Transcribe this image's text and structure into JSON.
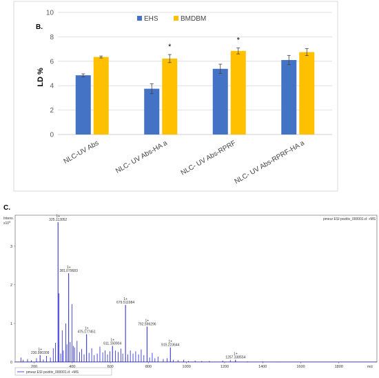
{
  "chart_data": [
    {
      "panel_label": "B.",
      "type": "bar",
      "ylabel": "LD %",
      "ylim": [
        0,
        10
      ],
      "yticks": [
        0,
        2,
        4,
        6,
        8,
        10
      ],
      "grid": true,
      "legend_position": "top",
      "categories": [
        "NLC-UV Abs",
        "NLC- UV Abs-HA a",
        "NLC- UV Abs-RPRF",
        "NLC- UV Abs-RPRF-HA a"
      ],
      "series": [
        {
          "name": "EHS",
          "color": "#4472C4",
          "values": [
            4.85,
            3.75,
            5.38,
            6.1
          ],
          "errors": [
            0.12,
            0.4,
            0.38,
            0.38
          ]
        },
        {
          "name": "BMDBM",
          "color": "#FFC000",
          "values": [
            6.35,
            6.22,
            6.85,
            6.75
          ],
          "errors": [
            0.08,
            0.33,
            0.25,
            0.28
          ]
        }
      ],
      "annotations": [
        {
          "category_index": 1,
          "series_index": 1,
          "text": "*"
        },
        {
          "category_index": 2,
          "series_index": 1,
          "text": "*"
        }
      ]
    },
    {
      "panel_label": "C.",
      "type": "line",
      "xlabel": "m/z",
      "ylabel": "Intens.",
      "y_exponent": "x10^5",
      "y_multiplier_text": "x10",
      "y_multiplier_exp": "5",
      "xlim": [
        100,
        2000
      ],
      "xticks": [
        200,
        400,
        600,
        800,
        1000,
        1200,
        1400,
        1600,
        1800
      ],
      "ylim": [
        0,
        3.8
      ],
      "yticks": [
        0,
        1,
        2,
        3
      ],
      "header_text": "pmeur ESI pozitiv_000001.d: +MS",
      "legend_text": "pmeur ESI pozitiv_000001.d: +MS",
      "peak_charge": "1+",
      "labeled_peaks": [
        {
          "mz": 325.113052,
          "label": "325.113052",
          "intensity": 3.62
        },
        {
          "mz": 381.079683,
          "label": "381.079683",
          "intensity": 2.3
        },
        {
          "mz": 679.511984,
          "label": "679.511984",
          "intensity": 1.48
        },
        {
          "mz": 792.596296,
          "label": "792.596296",
          "intensity": 0.92
        },
        {
          "mz": 475.177451,
          "label": "475.177451",
          "intensity": 0.72
        },
        {
          "mz": 611.160904,
          "label": "611.160904",
          "intensity": 0.42
        },
        {
          "mz": 915.223644,
          "label": "915.223644",
          "intensity": 0.38
        },
        {
          "mz": 230.990309,
          "label": "230.990309",
          "intensity": 0.18
        },
        {
          "mz": 1257.338554,
          "label": "1257.338554",
          "intensity": 0.06
        }
      ],
      "other_peaks": [
        {
          "mz": 130,
          "intensity": 0.12
        },
        {
          "mz": 142,
          "intensity": 0.06
        },
        {
          "mz": 165,
          "intensity": 0.08
        },
        {
          "mz": 185,
          "intensity": 0.05
        },
        {
          "mz": 212,
          "intensity": 0.1
        },
        {
          "mz": 248,
          "intensity": 0.07
        },
        {
          "mz": 265,
          "intensity": 0.16
        },
        {
          "mz": 285,
          "intensity": 0.12
        },
        {
          "mz": 300,
          "intensity": 0.36
        },
        {
          "mz": 312,
          "intensity": 0.5
        },
        {
          "mz": 330,
          "intensity": 1.78
        },
        {
          "mz": 339,
          "intensity": 0.22
        },
        {
          "mz": 347,
          "intensity": 0.82
        },
        {
          "mz": 353,
          "intensity": 0.3
        },
        {
          "mz": 366,
          "intensity": 1.0
        },
        {
          "mz": 372,
          "intensity": 0.46
        },
        {
          "mz": 389,
          "intensity": 0.52
        },
        {
          "mz": 398,
          "intensity": 1.5
        },
        {
          "mz": 405,
          "intensity": 0.42
        },
        {
          "mz": 412,
          "intensity": 0.38
        },
        {
          "mz": 425,
          "intensity": 0.55
        },
        {
          "mz": 438,
          "intensity": 0.26
        },
        {
          "mz": 449,
          "intensity": 0.34
        },
        {
          "mz": 462,
          "intensity": 0.2
        },
        {
          "mz": 488,
          "intensity": 0.24
        },
        {
          "mz": 502,
          "intensity": 0.36
        },
        {
          "mz": 515,
          "intensity": 0.18
        },
        {
          "mz": 531,
          "intensity": 0.22
        },
        {
          "mz": 545,
          "intensity": 0.4
        },
        {
          "mz": 560,
          "intensity": 0.25
        },
        {
          "mz": 572,
          "intensity": 0.3
        },
        {
          "mz": 585,
          "intensity": 0.2
        },
        {
          "mz": 598,
          "intensity": 0.28
        },
        {
          "mz": 627,
          "intensity": 0.3
        },
        {
          "mz": 641,
          "intensity": 0.26
        },
        {
          "mz": 655,
          "intensity": 0.35
        },
        {
          "mz": 665,
          "intensity": 0.22
        },
        {
          "mz": 692,
          "intensity": 0.2
        },
        {
          "mz": 705,
          "intensity": 0.3
        },
        {
          "mz": 719,
          "intensity": 0.22
        },
        {
          "mz": 733,
          "intensity": 0.28
        },
        {
          "mz": 748,
          "intensity": 0.2
        },
        {
          "mz": 762,
          "intensity": 0.33
        },
        {
          "mz": 776,
          "intensity": 0.18
        },
        {
          "mz": 806,
          "intensity": 0.12
        },
        {
          "mz": 820,
          "intensity": 0.24
        },
        {
          "mz": 834,
          "intensity": 0.1
        },
        {
          "mz": 850,
          "intensity": 0.14
        },
        {
          "mz": 878,
          "intensity": 0.08
        },
        {
          "mz": 898,
          "intensity": 0.1
        },
        {
          "mz": 930,
          "intensity": 0.06
        },
        {
          "mz": 955,
          "intensity": 0.05
        },
        {
          "mz": 985,
          "intensity": 0.06
        },
        {
          "mz": 1010,
          "intensity": 0.03
        },
        {
          "mz": 1045,
          "intensity": 0.04
        },
        {
          "mz": 1080,
          "intensity": 0.03
        },
        {
          "mz": 1120,
          "intensity": 0.03
        },
        {
          "mz": 1190,
          "intensity": 0.04
        },
        {
          "mz": 1230,
          "intensity": 0.05
        },
        {
          "mz": 1320,
          "intensity": 0.02
        },
        {
          "mz": 1400,
          "intensity": 0.02
        },
        {
          "mz": 1490,
          "intensity": 0.01
        }
      ]
    }
  ]
}
